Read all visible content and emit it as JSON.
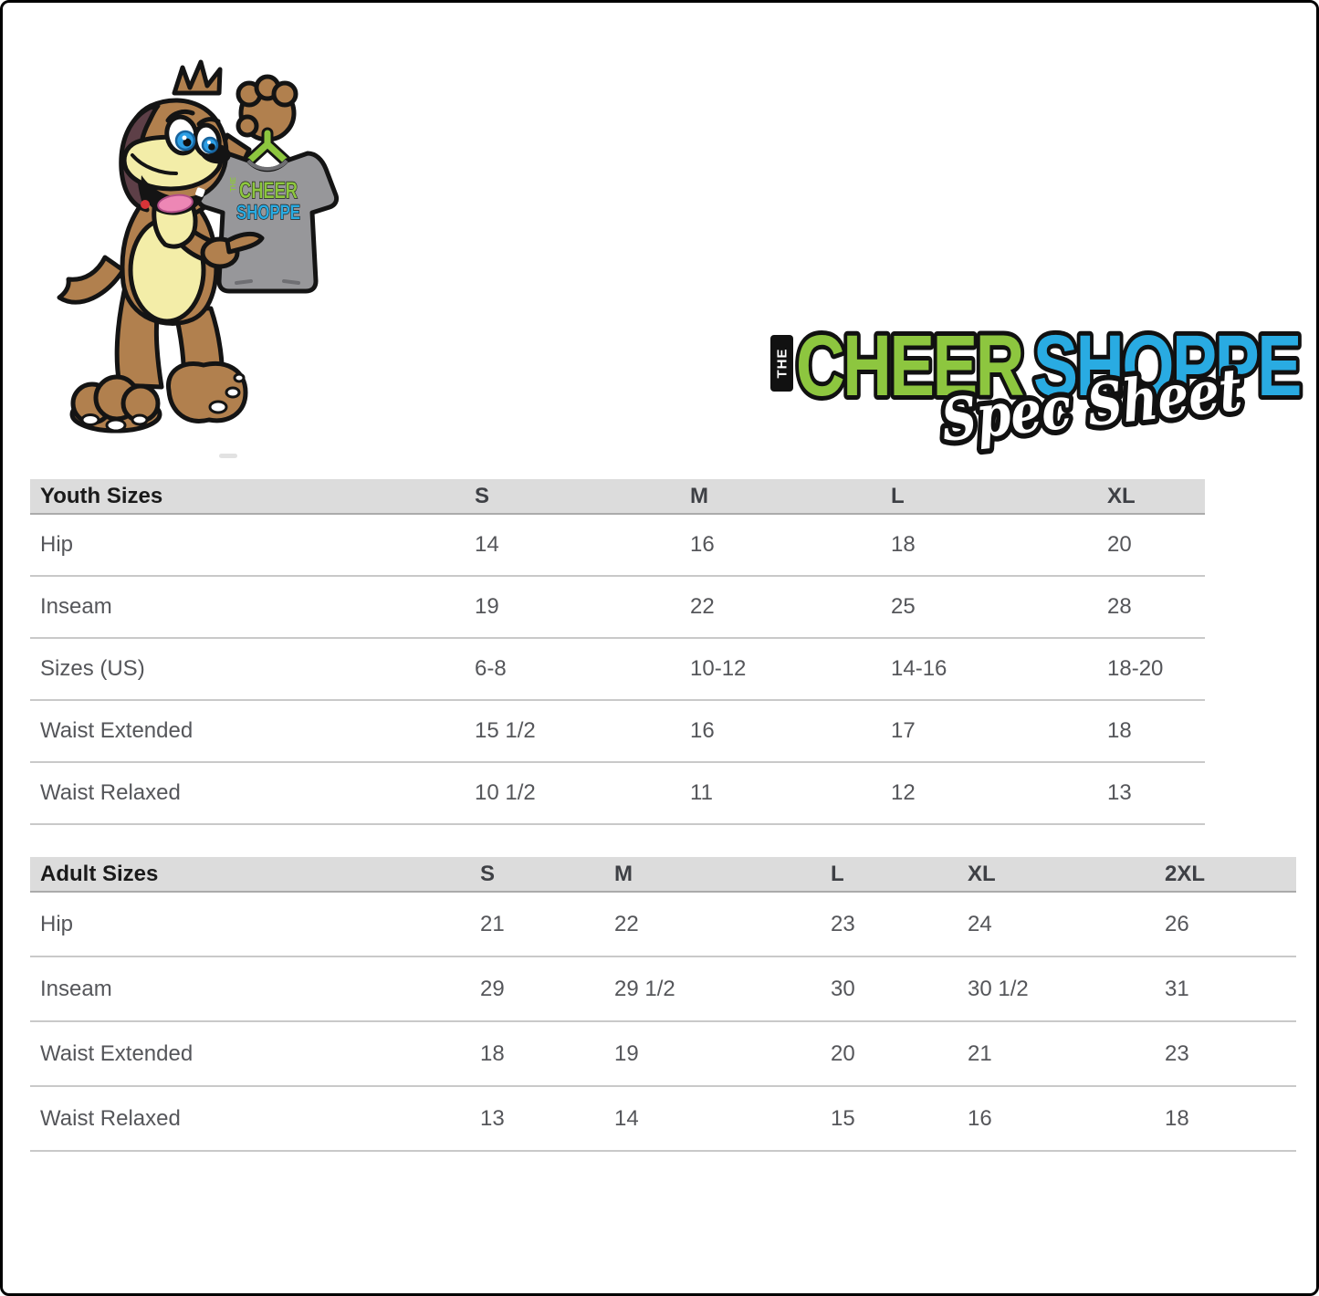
{
  "theme": {
    "brand-green": "#8DC63F",
    "brand-blue": "#29ABE2",
    "dog-brown": "#B1804E",
    "dog-ear": "#5D3F47",
    "dog-cream": "#F3EDA8",
    "tongue-pink": "#ED87B5",
    "eye-blue": "#2D9FE5",
    "shirt-gray": "#97979A",
    "table-header-bg": "#DCDCDC",
    "table-border": "#C9C9C9",
    "text-dark": "#1A1A1A",
    "text-gray": "#55565A"
  },
  "logo": {
    "the": "THE",
    "word1": "CHEER",
    "word2": "SHOPPE",
    "tagline": "Spec Sheet"
  },
  "mascot_shirt": {
    "the": "THE",
    "line1": "CHEER",
    "line2": "SHOPPE"
  },
  "tables": {
    "youth": {
      "title": "Youth Sizes",
      "columns": [
        "S",
        "M",
        "L",
        "XL"
      ],
      "rows": [
        {
          "label": "Hip",
          "values": [
            "14",
            "16",
            "18",
            "20"
          ]
        },
        {
          "label": "Inseam",
          "values": [
            "19",
            "22",
            "25",
            "28"
          ]
        },
        {
          "label": "Sizes (US)",
          "values": [
            "6-8",
            "10-12",
            "14-16",
            "18-20"
          ]
        },
        {
          "label": "Waist Extended",
          "values": [
            "15 1/2",
            "16",
            "17",
            "18"
          ]
        },
        {
          "label": "Waist Relaxed",
          "values": [
            "10 1/2",
            "11",
            "12",
            "13"
          ]
        }
      ]
    },
    "adult": {
      "title": "Adult Sizes",
      "columns": [
        "S",
        "M",
        "L",
        "XL",
        "2XL"
      ],
      "rows": [
        {
          "label": "Hip",
          "values": [
            "21",
            "22",
            "23",
            "24",
            "26"
          ]
        },
        {
          "label": "Inseam",
          "values": [
            "29",
            "29 1/2",
            "30",
            "30 1/2",
            "31"
          ]
        },
        {
          "label": "Waist Extended",
          "values": [
            "18",
            "19",
            "20",
            "21",
            "23"
          ]
        },
        {
          "label": "Waist Relaxed",
          "values": [
            "13",
            "14",
            "15",
            "16",
            "18"
          ]
        }
      ]
    }
  }
}
